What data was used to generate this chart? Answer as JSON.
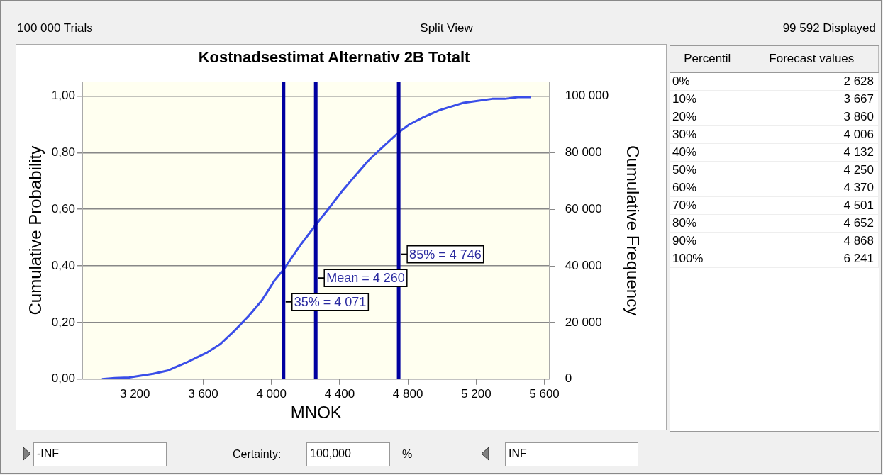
{
  "chart_data": {
    "type": "line",
    "title": "Kostnadsestimat Alternativ 2B Totalt",
    "xlabel": "MNOK",
    "ylabel": "Cumulative Probability",
    "y2label": "Cumulative Frequency",
    "series": [
      {
        "color": "#3a4ee8",
        "x": [
          3007,
          3082,
          3166,
          3232,
          3307,
          3391,
          3513,
          3626,
          3701,
          3785,
          3869,
          3944,
          4019,
          4076,
          4169,
          4259,
          4338,
          4413,
          4488,
          4573,
          4657,
          4747,
          4807,
          4891,
          4985,
          5126,
          5201,
          5295,
          5369,
          5444,
          5519
        ],
        "values": [
          0,
          0.004,
          0.006,
          0.012,
          0.019,
          0.03,
          0.062,
          0.095,
          0.124,
          0.172,
          0.225,
          0.278,
          0.349,
          0.391,
          0.473,
          0.544,
          0.604,
          0.663,
          0.716,
          0.775,
          0.822,
          0.872,
          0.899,
          0.925,
          0.95,
          0.976,
          0.982,
          0.99,
          0.99,
          0.996,
          0.996
        ]
      }
    ],
    "xlim": [
      2895,
      5630
    ],
    "xticks": [
      {
        "value": 3200,
        "label": "3 200"
      },
      {
        "value": 3600,
        "label": "3 600"
      },
      {
        "value": 4000,
        "label": "4 000"
      },
      {
        "value": 4400,
        "label": "4 400"
      },
      {
        "value": 4800,
        "label": "4 800"
      },
      {
        "value": 5200,
        "label": "5 200"
      },
      {
        "value": 5600,
        "label": "5 600"
      }
    ],
    "ylim": [
      0,
      1.05
    ],
    "yticks": [
      {
        "value": 0,
        "label": "0,00"
      },
      {
        "value": 0.2,
        "label": "0,20"
      },
      {
        "value": 0.4,
        "label": "0,40"
      },
      {
        "value": 0.6,
        "label": "0,60"
      },
      {
        "value": 0.8,
        "label": "0,80"
      },
      {
        "value": 1,
        "label": "1,00"
      }
    ],
    "y2lim": [
      0,
      105000
    ],
    "y2ticks": [
      0,
      {
        "value": 20000,
        "label": "20 000"
      },
      {
        "value": 40000,
        "label": "40 000"
      },
      {
        "value": 60000,
        "label": "60 000"
      },
      {
        "value": 80000,
        "label": "80 000"
      },
      {
        "value": 100000,
        "label": "100 000"
      }
    ],
    "ref_lines": [
      {
        "axis": "x",
        "value": 4071,
        "label": "35% = 4 071",
        "color": "#0000a0"
      },
      {
        "axis": "x",
        "value": 4260,
        "label": "Mean = 4 260",
        "color": "#0000a0"
      },
      {
        "axis": "x",
        "value": 4746,
        "label": "85% = 4 746",
        "color": "#0000a0"
      }
    ],
    "grid": "y",
    "legend": false,
    "marker": "none",
    "line_style": "solid",
    "annotations": [
      "100 000 Trials",
      "Split View",
      "99 592 Displayed",
      "Percentil",
      "Forecast values",
      "0%",
      "2 628",
      "10%",
      "3 667",
      "20%",
      "3 860",
      "30%",
      "4 006",
      "40%",
      "4 132",
      "50%",
      "4 250",
      "60%",
      "4 370",
      "70%",
      "4 501",
      "80%",
      "4 652",
      "90%",
      "4 868",
      "100%",
      "6 241",
      "-INF",
      "Certainty:",
      "100,000",
      "%",
      "INF"
    ]
  }
}
